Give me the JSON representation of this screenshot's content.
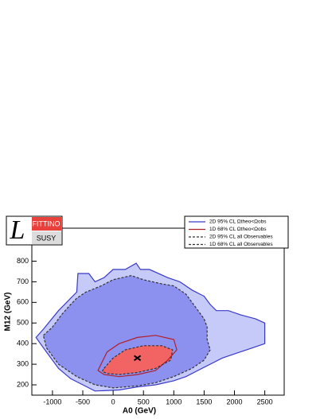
{
  "chart_data": {
    "type": "contour",
    "x_label": "A0 (GeV)",
    "y_label": "M12 (GeV)",
    "xlim": [
      -1340,
      2820
    ],
    "ylim": [
      150,
      960
    ],
    "xticks": [
      -1000,
      -500,
      0,
      500,
      1000,
      1500,
      2000,
      2500
    ],
    "yticks": [
      200,
      300,
      400,
      500,
      600,
      700,
      800
    ],
    "legend": "top-right",
    "logo": {
      "top": "FITTINO",
      "bottom": "SUSY",
      "letter": "L"
    },
    "series": [
      {
        "name": "2D 95% CL  Ωtheo<Ωobs",
        "color": "#3a3ac8",
        "fill": "#c6caf8",
        "dashed": false,
        "x": [
          -1270,
          -1150,
          -900,
          -700,
          -600,
          -580,
          -400,
          -300,
          -150,
          0,
          200,
          380,
          450,
          600,
          900,
          1100,
          1300,
          1500,
          1600,
          1700,
          1900,
          2100,
          2350,
          2500,
          2500,
          2300,
          2100,
          1800,
          1600,
          1400,
          1200,
          1000,
          700,
          400,
          100,
          -300,
          -500,
          -700,
          -900,
          -1100,
          -1200
        ],
        "values": [
          430,
          470,
          560,
          620,
          650,
          740,
          740,
          700,
          720,
          760,
          760,
          790,
          760,
          760,
          720,
          700,
          660,
          630,
          590,
          560,
          560,
          540,
          520,
          500,
          400,
          380,
          360,
          330,
          300,
          270,
          240,
          220,
          200,
          190,
          175,
          170,
          200,
          230,
          280,
          360,
          400
        ]
      },
      {
        "name": "1D 68% CL  Ωtheo<Ωobs",
        "color": "#b0202a",
        "fill": null,
        "dashed": false,
        "x": [
          -200,
          -100,
          100,
          400,
          700,
          1000,
          1050,
          900,
          700,
          400,
          100,
          -150,
          -250
        ],
        "values": [
          300,
          360,
          400,
          430,
          440,
          420,
          370,
          320,
          270,
          250,
          240,
          250,
          270
        ]
      },
      {
        "name": "2D 95% CL  all Observables",
        "color": "#333333",
        "fill": "#8c90ee",
        "dashed": true,
        "x": [
          -1150,
          -1000,
          -850,
          -700,
          -600,
          -450,
          -200,
          0,
          300,
          500,
          800,
          1000,
          1200,
          1300,
          1400,
          1500,
          1550,
          1550,
          1600,
          1500,
          1300,
          1000,
          700,
          400,
          0,
          -300,
          -600,
          -900,
          -1100
        ],
        "values": [
          440,
          480,
          540,
          590,
          620,
          650,
          680,
          710,
          730,
          710,
          690,
          680,
          640,
          600,
          560,
          520,
          480,
          420,
          370,
          320,
          280,
          240,
          210,
          195,
          185,
          200,
          240,
          300,
          380
        ]
      },
      {
        "name": "1D 68% CL  all Observables",
        "color": "#333333",
        "fill": "#f26464",
        "dashed": true,
        "x": [
          -150,
          0,
          200,
          500,
          800,
          980,
          950,
          700,
          400,
          100,
          -100,
          -180
        ],
        "values": [
          280,
          330,
          370,
          390,
          390,
          370,
          320,
          280,
          260,
          250,
          255,
          265
        ]
      }
    ],
    "best_fit": {
      "x": 400,
      "y": 330
    }
  }
}
